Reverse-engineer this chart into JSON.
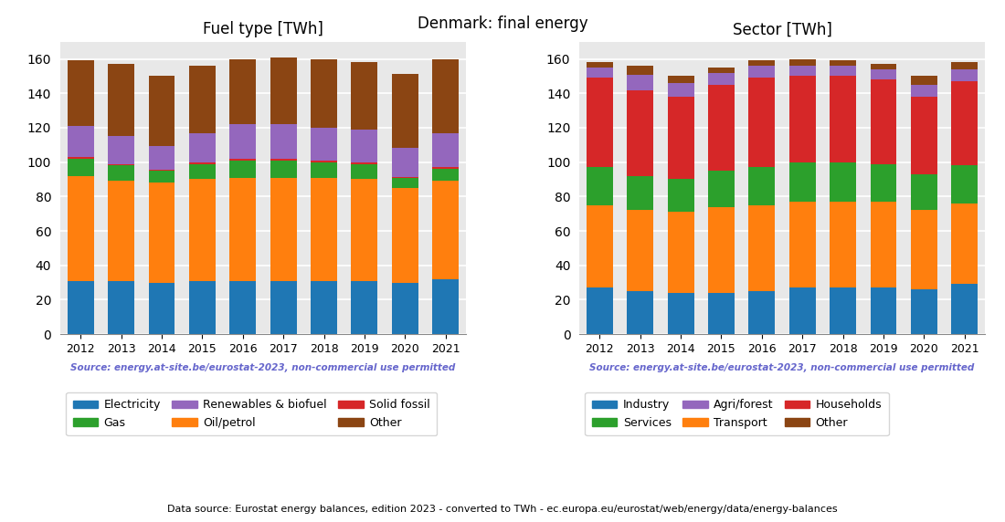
{
  "years": [
    2012,
    2013,
    2014,
    2015,
    2016,
    2017,
    2018,
    2019,
    2020,
    2021
  ],
  "title": "Denmark: final energy",
  "chart1_title": "Fuel type [TWh]",
  "chart2_title": "Sector [TWh]",
  "source_text": "Source: energy.at-site.be/eurostat-2023, non-commercial use permitted",
  "footer_text": "Data source: Eurostat energy balances, edition 2023 - converted to TWh - ec.europa.eu/eurostat/web/energy/data/energy-balances",
  "fuel_electricity": [
    31,
    31,
    30,
    31,
    31,
    31,
    31,
    31,
    30,
    32
  ],
  "fuel_oil_petrol": [
    61,
    58,
    58,
    59,
    60,
    60,
    60,
    59,
    55,
    57
  ],
  "fuel_gas": [
    10,
    9,
    7,
    9,
    10,
    10,
    9,
    9,
    6,
    7
  ],
  "fuel_solid_fossil": [
    1,
    1,
    0.5,
    1,
    1,
    1,
    1,
    1,
    0.5,
    1
  ],
  "fuel_renewables": [
    18,
    16,
    14,
    17,
    20,
    20,
    19,
    19,
    17,
    20
  ],
  "fuel_other": [
    38,
    42,
    41,
    39,
    38,
    39,
    40,
    39,
    43,
    43
  ],
  "sector_industry": [
    27,
    25,
    24,
    24,
    25,
    27,
    27,
    27,
    26,
    29
  ],
  "sector_transport": [
    48,
    47,
    47,
    50,
    50,
    50,
    50,
    50,
    46,
    47
  ],
  "sector_services": [
    22,
    20,
    19,
    21,
    22,
    23,
    23,
    22,
    21,
    22
  ],
  "sector_households": [
    52,
    50,
    48,
    50,
    52,
    50,
    50,
    49,
    45,
    49
  ],
  "sector_agri_forest": [
    6,
    9,
    8,
    7,
    7,
    6,
    6,
    6,
    7,
    7
  ],
  "sector_other": [
    3,
    5,
    4,
    3,
    3,
    4,
    3,
    3,
    5,
    4
  ],
  "color_electricity": "#1f77b4",
  "color_oil_petrol": "#ff7f0e",
  "color_gas": "#2ca02c",
  "color_solid_fossil": "#d62728",
  "color_renewables": "#9467bd",
  "color_other_fuel": "#8B4513",
  "color_industry": "#1f77b4",
  "color_transport": "#ff7f0e",
  "color_services": "#2ca02c",
  "color_households": "#d62728",
  "color_agri_forest": "#9467bd",
  "color_other_sector": "#8B4513",
  "source_color": "#6666cc",
  "bg_color": "#e8e8e8",
  "grid_color": "white",
  "ylim": [
    0,
    170
  ],
  "yticks": [
    0,
    20,
    40,
    60,
    80,
    100,
    120,
    140,
    160
  ]
}
